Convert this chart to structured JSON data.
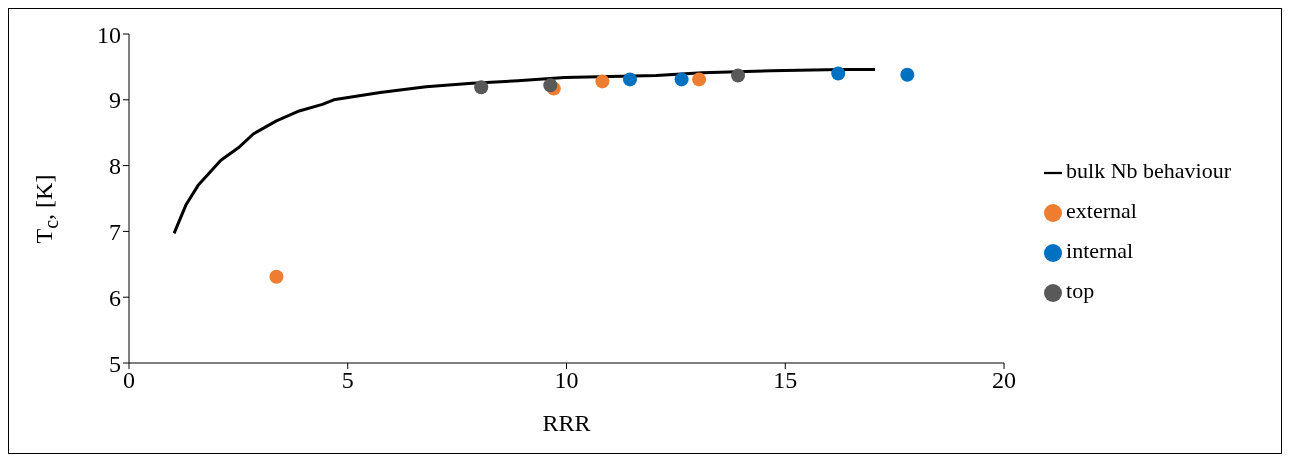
{
  "chart_data": {
    "type": "scatter",
    "xlabel": "RRR",
    "ylabel": "T$_{c}$, [K]",
    "xlim": [
      0,
      20
    ],
    "xticks": [
      0,
      5,
      10,
      15,
      20
    ],
    "ylim": [
      5,
      10
    ],
    "yticks": [
      5,
      6,
      7,
      8,
      9,
      10
    ],
    "grid": false,
    "legend": "right",
    "marker": "circle",
    "series": [
      {
        "name": "bulk Nb behaviour",
        "type": "line",
        "marker": "none",
        "color": "#000000",
        "x": [
          1.03,
          1.3,
          1.58,
          2.1,
          2.5,
          2.84,
          3.37,
          3.89,
          4.42,
          4.68,
          5.74,
          6.79,
          7.84,
          8.89,
          9.95,
          12.05,
          13.1,
          14.68,
          16.26,
          17.05
        ],
        "values": [
          6.97,
          7.4,
          7.7,
          8.08,
          8.27,
          8.48,
          8.68,
          8.83,
          8.93,
          9.0,
          9.11,
          9.2,
          9.25,
          9.29,
          9.34,
          9.37,
          9.41,
          9.44,
          9.46,
          9.46
        ]
      },
      {
        "name": "external",
        "color": "#ed7d31",
        "x": [
          3.37,
          9.71,
          10.82,
          13.03
        ],
        "values": [
          6.31,
          9.17,
          9.28,
          9.31
        ]
      },
      {
        "name": "internal",
        "color": "#0070c0",
        "x": [
          11.45,
          12.63,
          16.21,
          17.79
        ],
        "values": [
          9.31,
          9.31,
          9.4,
          9.38
        ]
      },
      {
        "name": "top",
        "color": "#595959",
        "x": [
          8.05,
          9.63,
          13.92
        ],
        "values": [
          9.19,
          9.22,
          9.37
        ]
      }
    ]
  }
}
